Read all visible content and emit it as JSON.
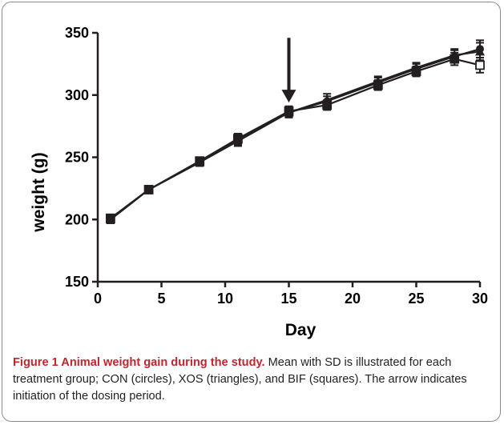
{
  "chart_data": {
    "type": "line",
    "xlabel": "Day",
    "ylabel": "weight (g)",
    "xlim": [
      0,
      30
    ],
    "ylim": [
      150,
      350
    ],
    "xticks": [
      0,
      5,
      10,
      15,
      20,
      25,
      30
    ],
    "yticks": [
      150,
      200,
      250,
      300,
      350
    ],
    "grid": false,
    "x": [
      1,
      4,
      8,
      11,
      15,
      18,
      22,
      25,
      28,
      30
    ],
    "series": [
      {
        "marker": "circle",
        "values": [
          200,
          224,
          246,
          263,
          286,
          295,
          310,
          321,
          331,
          337
        ],
        "sd": [
          3,
          3,
          3,
          4,
          4,
          4,
          4,
          4,
          5,
          7
        ]
      },
      {
        "marker": "triangle",
        "values": [
          200,
          224,
          246,
          264,
          286,
          296,
          311,
          322,
          332,
          335
        ],
        "sd": [
          3,
          3,
          3,
          4,
          4,
          5,
          4,
          4,
          5,
          7
        ]
      },
      {
        "marker": "square",
        "values": [
          201,
          224,
          247,
          265,
          287,
          292,
          308,
          319,
          329,
          324
        ],
        "sd": [
          3,
          3,
          3,
          4,
          4,
          4,
          4,
          4,
          5,
          6
        ]
      }
    ],
    "annotations": [
      {
        "type": "arrow",
        "x": 15,
        "y_top": 346,
        "y_tip": 294
      }
    ],
    "colors": {
      "line": "#231f20",
      "marker": "#231f20",
      "caption_label": "#c0262d",
      "frame": "#8a8a8a"
    }
  },
  "caption": {
    "label": "Figure 1 Animal weight gain during the study.",
    "text": " Mean with SD is illustrated for each treatment group; CON (circles), XOS (triangles), and BIF (squares). The arrow indicates initiation of the dosing period."
  }
}
